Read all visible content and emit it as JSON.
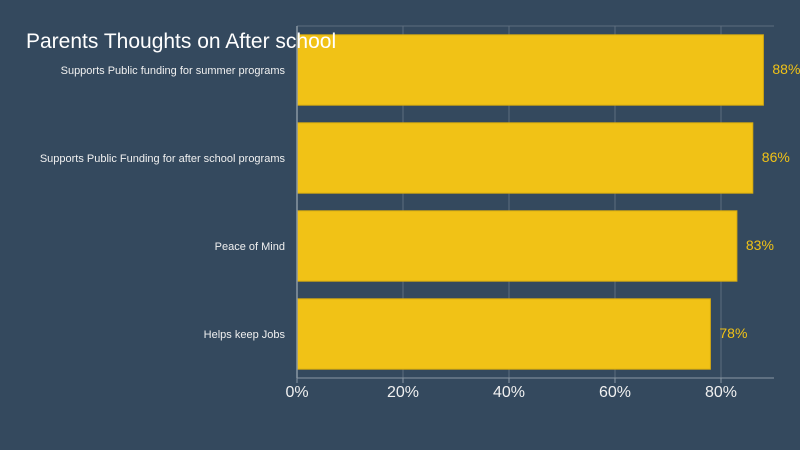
{
  "chart_data": {
    "type": "bar",
    "orientation": "horizontal",
    "title": "Parents Thoughts on After school",
    "categories": [
      "Supports Public funding for summer programs",
      "Supports Public Funding for after school programs",
      "Peace of Mind",
      "Helps keep Jobs"
    ],
    "values": [
      88,
      86,
      83,
      78
    ],
    "value_labels": [
      "88%",
      "86%",
      "83%",
      "78%"
    ],
    "xlim": [
      0,
      90
    ],
    "x_ticks": [
      0,
      20,
      40,
      60,
      80
    ],
    "x_tick_labels": [
      "0%",
      "20%",
      "40%",
      "60%",
      "80%"
    ],
    "grid": true,
    "legend": "none"
  },
  "colors": {
    "background": "#34495e",
    "bar": "#f1c216",
    "bar_stroke": "#d8ab0e",
    "value_label": "#f1c216",
    "gridline": "#5d6d7e",
    "axis": "#8a97a4",
    "text": "#f0f0f0"
  }
}
